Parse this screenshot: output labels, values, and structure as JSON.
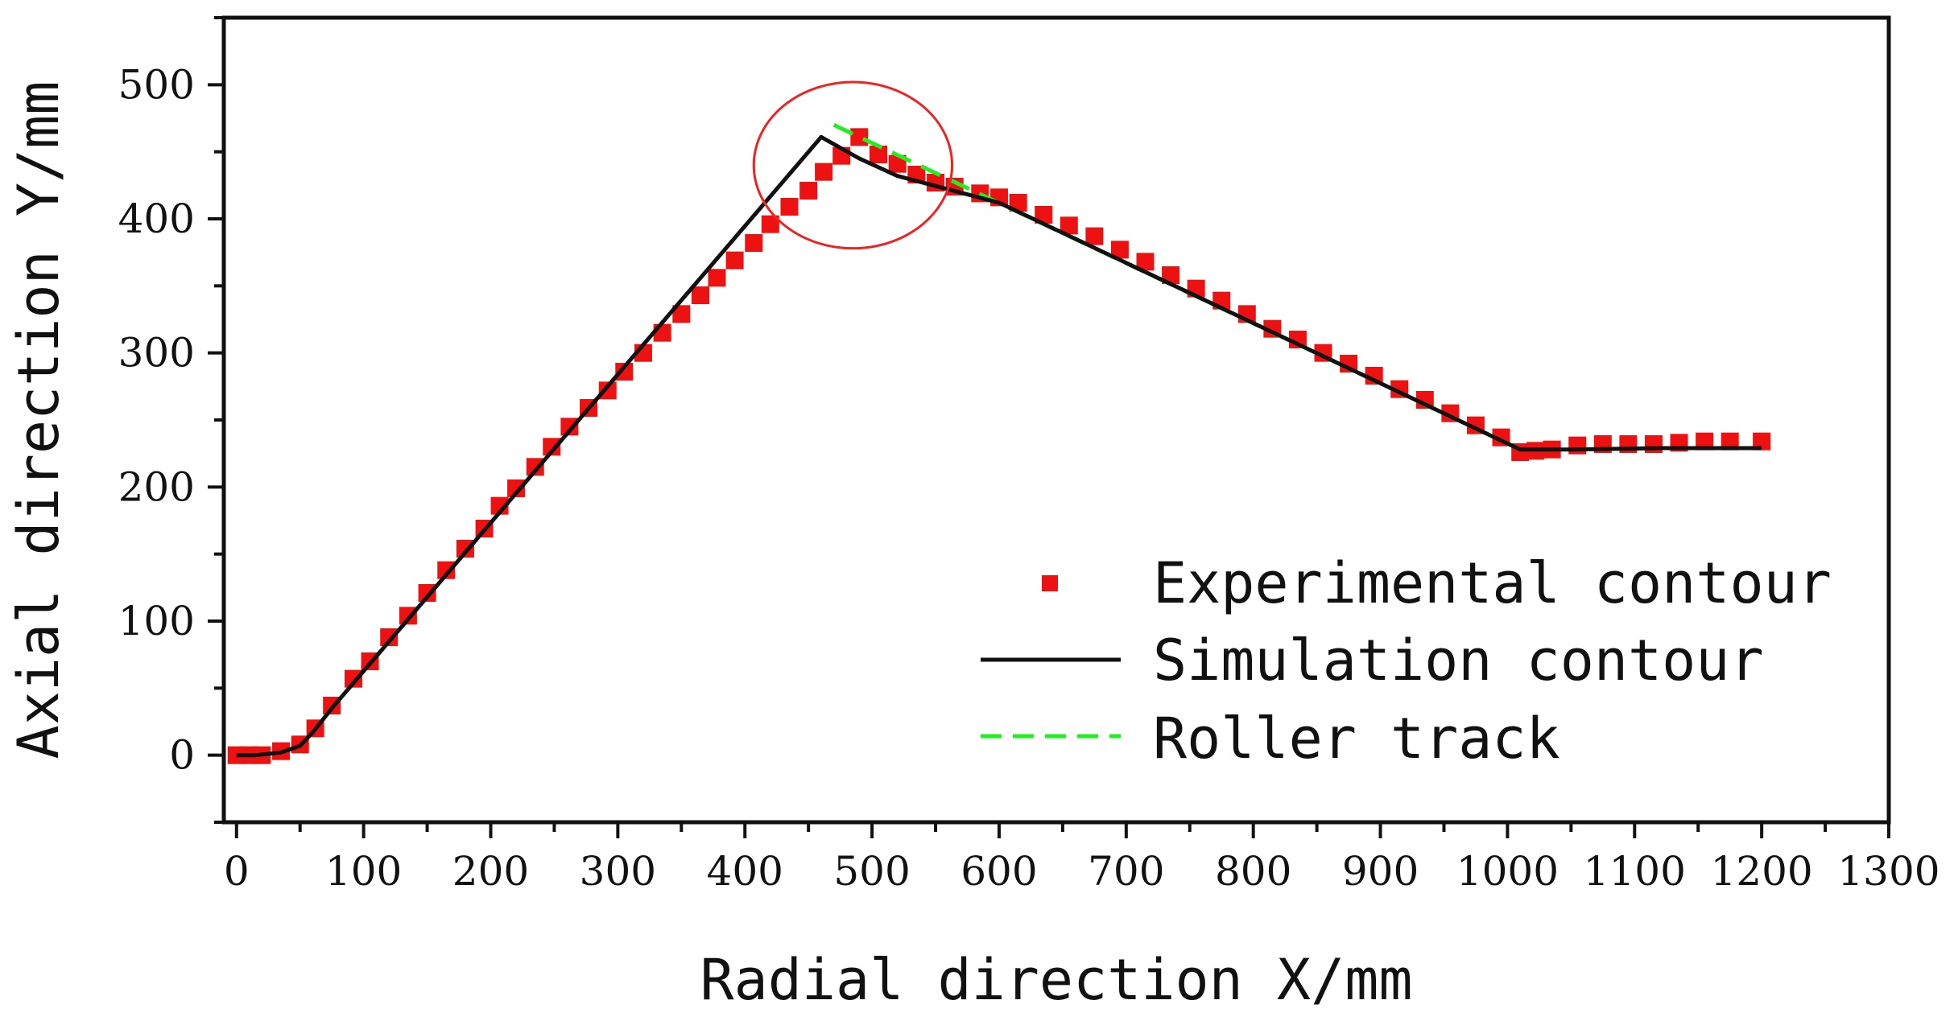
{
  "chart_data": {
    "type": "scatter",
    "title": "",
    "xlabel": "Radial direction X/mm",
    "ylabel": "Axial direction Y/mm",
    "xlim": [
      -10,
      1300
    ],
    "ylim": [
      -50,
      550
    ],
    "xticks": [
      0,
      100,
      200,
      300,
      400,
      500,
      600,
      700,
      800,
      900,
      1000,
      1100,
      1200,
      1300
    ],
    "yticks": [
      0,
      100,
      200,
      300,
      400,
      500
    ],
    "xtick_labels": [
      "0",
      "100",
      "200",
      "300",
      "400",
      "500",
      "600",
      "700",
      "800",
      "900",
      "1000",
      "1100",
      "1200",
      "1300"
    ],
    "ytick_labels": [
      "0",
      "100",
      "200",
      "300",
      "400",
      "500"
    ],
    "legend_position": "lower-right",
    "series": [
      {
        "name": "Experimental contour",
        "kind": "markers",
        "color": "#ee1111",
        "x": [
          0,
          10,
          20,
          35,
          50,
          62,
          75,
          92,
          105,
          120,
          135,
          150,
          165,
          180,
          195,
          207,
          220,
          235,
          248,
          262,
          277,
          292,
          305,
          320,
          335,
          350,
          365,
          378,
          392,
          407,
          420,
          435,
          450,
          462,
          476,
          490,
          505,
          520,
          535,
          550,
          565,
          585,
          600,
          615,
          635,
          655,
          675,
          695,
          715,
          735,
          755,
          775,
          795,
          815,
          835,
          855,
          875,
          895,
          915,
          935,
          955,
          975,
          995,
          1010,
          1022,
          1035,
          1055,
          1075,
          1095,
          1115,
          1135,
          1155,
          1175,
          1200
        ],
        "y": [
          0,
          0,
          0,
          3,
          8,
          20,
          37,
          57,
          70,
          88,
          104,
          121,
          138,
          154,
          169,
          186,
          199,
          215,
          230,
          245,
          259,
          272,
          286,
          300,
          315,
          329,
          343,
          356,
          369,
          382,
          396,
          409,
          421,
          435,
          447,
          461,
          448,
          441,
          433,
          427,
          424,
          419,
          416,
          412,
          403,
          395,
          387,
          377,
          368,
          358,
          348,
          339,
          329,
          318,
          310,
          300,
          292,
          283,
          273,
          265,
          255,
          246,
          237,
          226,
          227,
          228,
          231,
          232,
          232,
          232,
          233,
          234,
          234,
          234
        ]
      },
      {
        "name": "Simulation contour",
        "kind": "line",
        "color": "#111111",
        "x": [
          0,
          15,
          35,
          50,
          60,
          75,
          460,
          490,
          520,
          560,
          600,
          1010,
          1050,
          1120,
          1200
        ],
        "y": [
          0,
          0,
          2,
          7,
          17,
          35,
          461,
          445,
          432,
          422,
          412,
          228,
          228,
          229,
          229
        ]
      },
      {
        "name": "Roller track",
        "kind": "dashed",
        "color": "#22ee22",
        "x": [
          470,
          1010
        ],
        "y": [
          470,
          228
        ]
      }
    ],
    "annotations": [
      {
        "type": "ellipse",
        "color": "#ee2222",
        "cx": 485,
        "cy": 440,
        "rx": 78,
        "ry": 62
      }
    ]
  }
}
